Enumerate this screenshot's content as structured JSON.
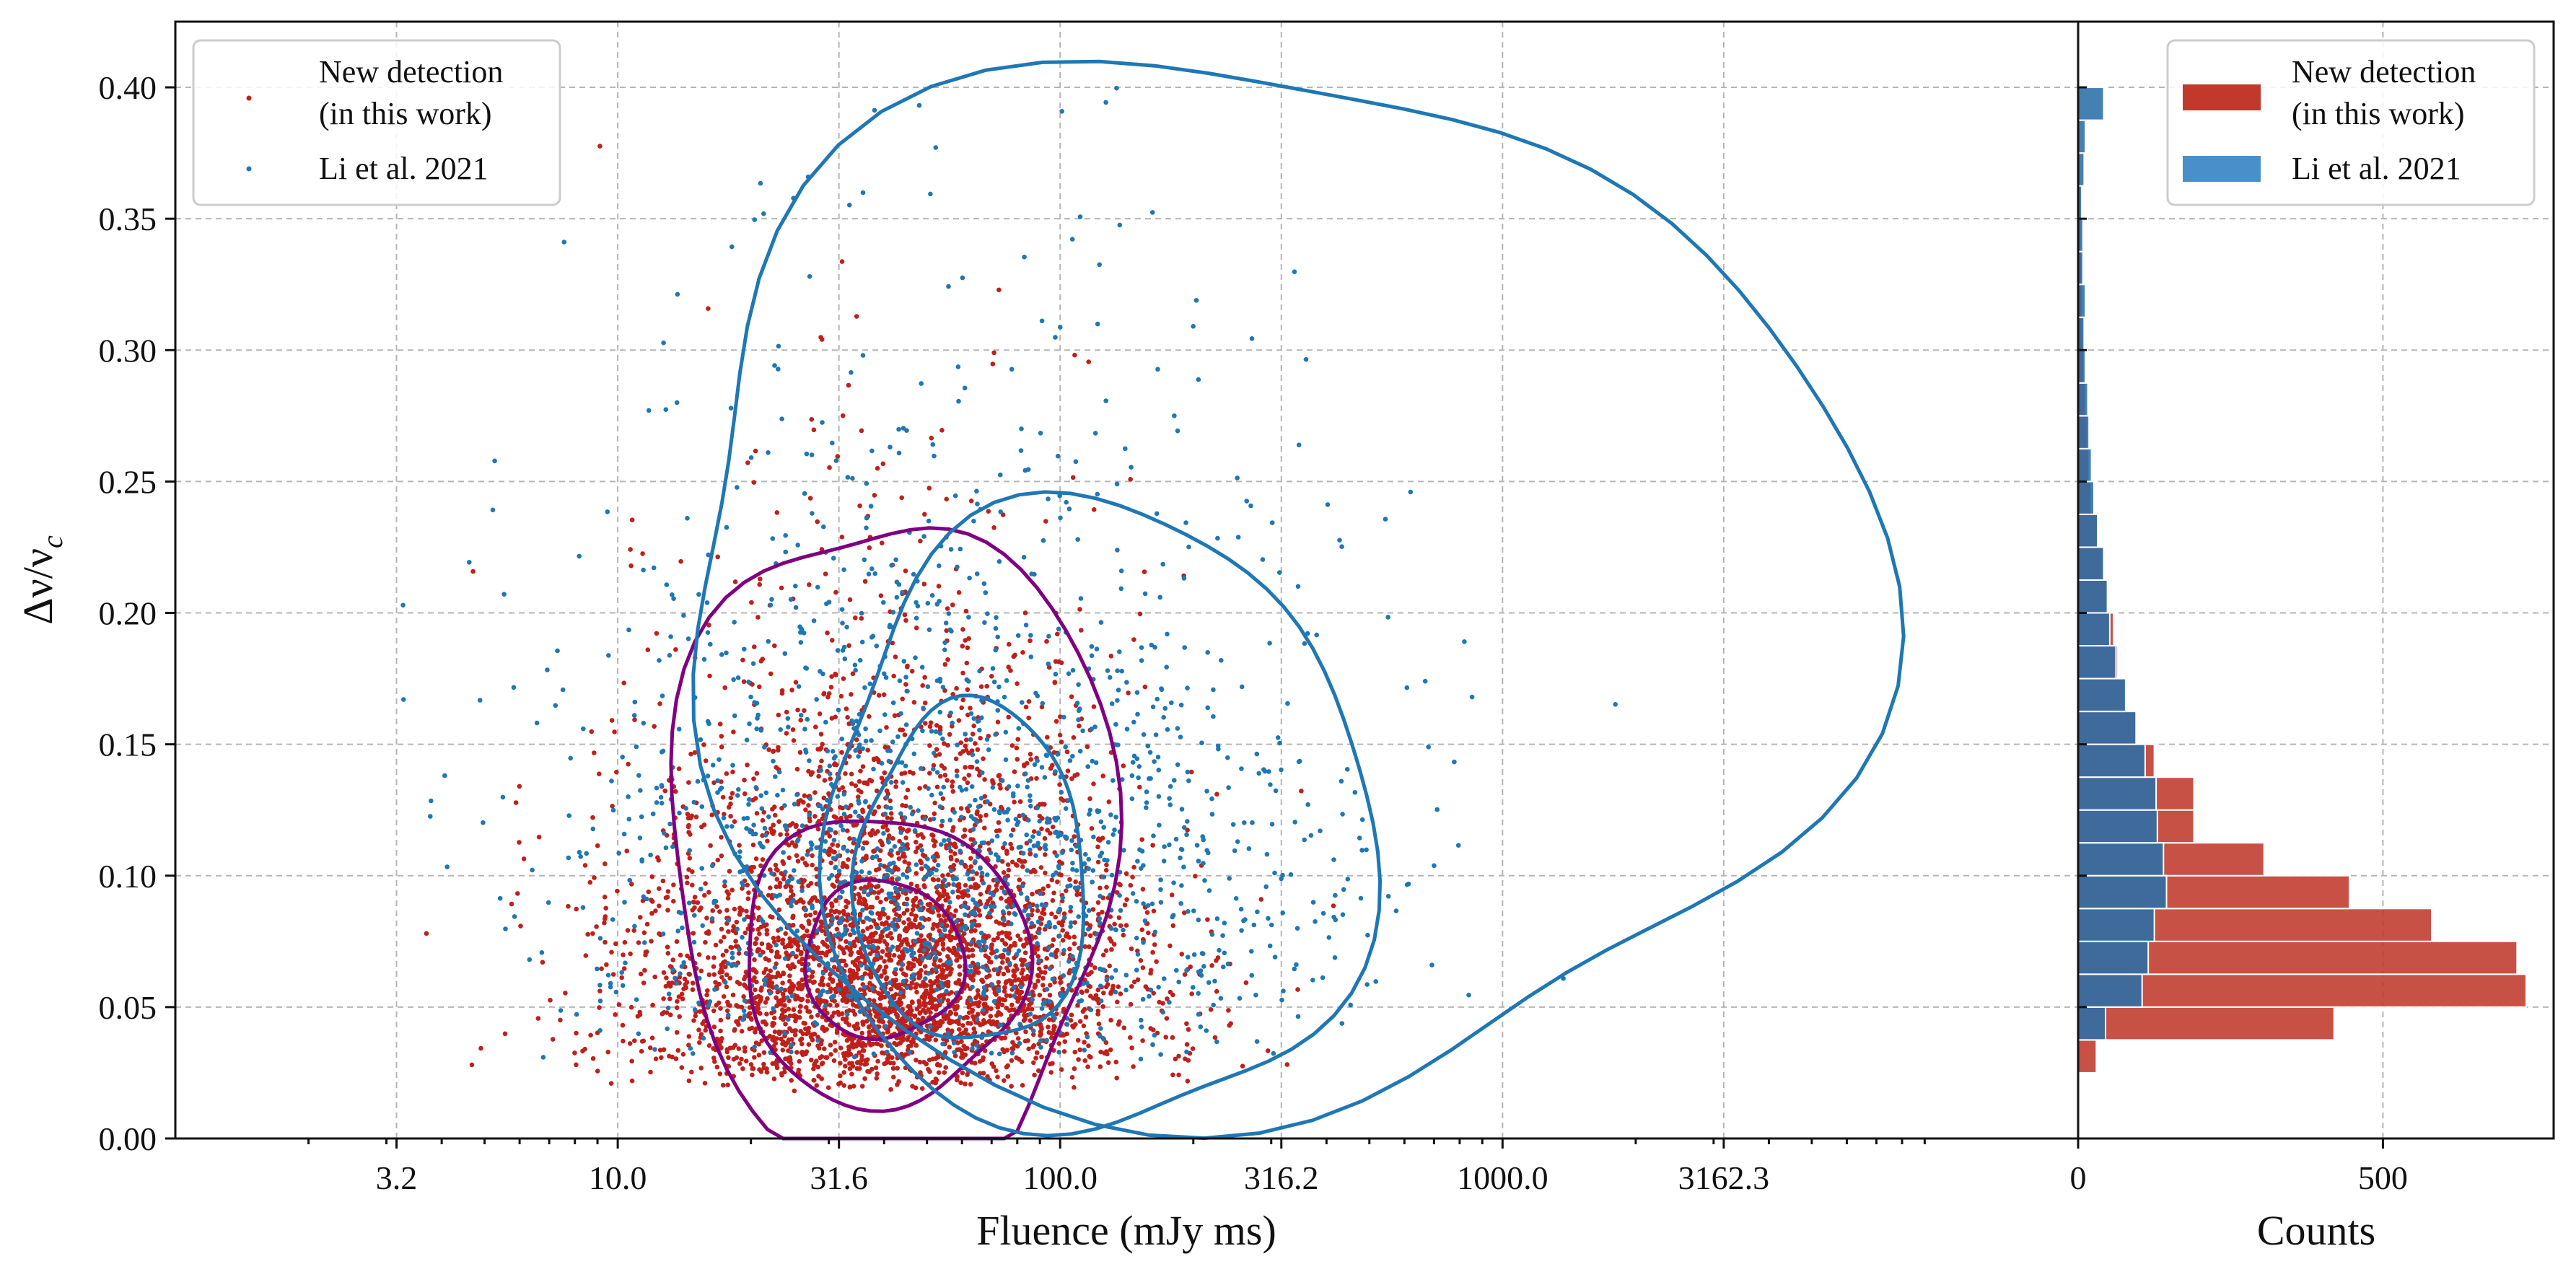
{
  "chart_data": [
    {
      "type": "scatter",
      "panel": "main",
      "title": "",
      "xlabel": "Fluence (mJy ms)",
      "ylabel": "Δν/ν",
      "ylabel_subscript": "c",
      "xscale": "log",
      "xlim": [
        1.0,
        20000.0
      ],
      "ylim": [
        0.0,
        0.425
      ],
      "xticks": [
        3.162,
        10.0,
        31.623,
        100.0,
        316.228,
        1000.0,
        3162.278
      ],
      "xtick_labels": [
        "3.2",
        "10.0",
        "31.6",
        "100.0",
        "316.2",
        "1000.0",
        "3162.3"
      ],
      "yticks": [
        0.0,
        0.05,
        0.1,
        0.15,
        0.2,
        0.25,
        0.3,
        0.35,
        0.4
      ],
      "ytick_labels": [
        "0.00",
        "0.05",
        "0.10",
        "0.15",
        "0.20",
        "0.25",
        "0.30",
        "0.35",
        "0.40"
      ],
      "grid": true,
      "legend_position": "top-left",
      "series": [
        {
          "name": "New detection\n(in this work)",
          "color": "#c0201a",
          "approx_points": 4000,
          "center_log10_fluence": 1.62,
          "center_ratio": 0.065,
          "typical_range_fluence": [
            8,
            200
          ],
          "typical_range_ratio": [
            0.02,
            0.3
          ]
        },
        {
          "name": "Li et al. 2021",
          "color": "#1f77b4",
          "approx_points": 1650,
          "center_log10_fluence": 1.75,
          "center_ratio": 0.08,
          "typical_range_fluence": [
            2,
            6000
          ],
          "typical_range_ratio": [
            0.03,
            0.4
          ]
        }
      ],
      "contours": [
        {
          "series": "New detection\n(in this work)",
          "color": "#800080",
          "levels": 3,
          "center_log10_fluence": 1.6,
          "center_ratio": 0.068
        },
        {
          "series": "Li et al. 2021",
          "color": "#1f77b4",
          "levels": 3,
          "center_log10_fluence": 1.8,
          "center_ratio": 0.1
        }
      ]
    },
    {
      "type": "bar",
      "panel": "histogram",
      "orientation": "horizontal",
      "xlabel": "Counts",
      "ylabel": "",
      "xlim": [
        0,
        780
      ],
      "xticks": [
        0,
        500
      ],
      "xtick_labels": [
        "0",
        "500"
      ],
      "bin_width": 0.0125,
      "bin_starts": [
        0.025,
        0.0375,
        0.05,
        0.0625,
        0.075,
        0.0875,
        0.1,
        0.1125,
        0.125,
        0.1375,
        0.15,
        0.1625,
        0.175,
        0.1875,
        0.2,
        0.2125,
        0.225,
        0.2375,
        0.25,
        0.2625,
        0.275,
        0.2875,
        0.3,
        0.3125,
        0.325,
        0.3375,
        0.35,
        0.3625,
        0.375,
        0.3875
      ],
      "series": [
        {
          "name": "New detection\n(in this work)",
          "color": "#c0392b",
          "values": [
            30,
            420,
            735,
            720,
            580,
            445,
            305,
            190,
            190,
            125,
            95,
            78,
            65,
            58,
            50,
            42,
            32,
            22,
            18,
            15,
            12,
            10,
            8,
            7,
            6,
            5,
            4,
            4,
            3,
            3
          ]
        },
        {
          "name": "Li et al. 2021",
          "color": "#2b6ea8",
          "values": [
            0,
            45,
            105,
            115,
            125,
            145,
            140,
            130,
            128,
            110,
            95,
            78,
            62,
            52,
            48,
            42,
            32,
            26,
            22,
            18,
            16,
            12,
            10,
            12,
            8,
            8,
            6,
            10,
            12,
            42
          ]
        }
      ]
    }
  ],
  "legend": {
    "main": [
      {
        "label_line1": "New detection",
        "label_line2": "(in this work)",
        "color": "#c0201a"
      },
      {
        "label_line1": "Li et al. 2021",
        "label_line2": "",
        "color": "#1f77b4"
      }
    ],
    "histogram": [
      {
        "label_line1": "New detection",
        "label_line2": "(in this work)",
        "color": "#c0392b"
      },
      {
        "label_line1": "Li et al. 2021",
        "label_line2": "",
        "color": "#4a90c8"
      }
    ]
  }
}
